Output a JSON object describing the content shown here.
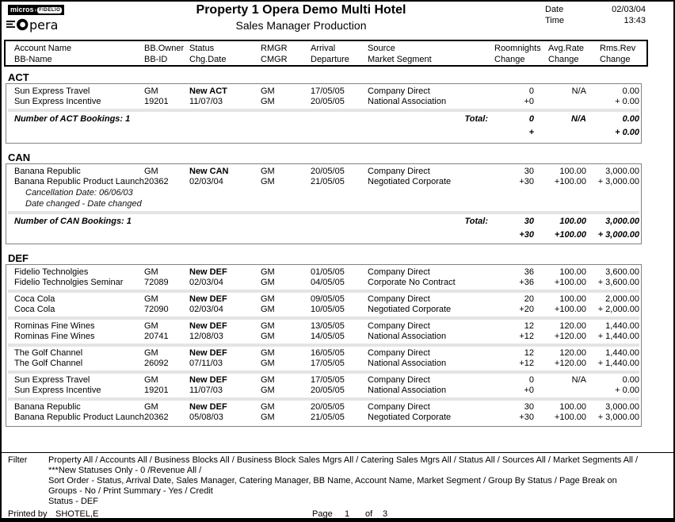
{
  "page": {
    "title": "Property 1 Opera Demo Multi Hotel",
    "subtitle": "Sales Manager Production",
    "date_label": "Date",
    "date_value": "02/03/04",
    "time_label": "Time",
    "time_value": "13:43"
  },
  "logo": {
    "micros_text": "micros",
    "arrow": "›",
    "fidelio_text": "FIDELIO",
    "opera_text": "pera"
  },
  "columns": {
    "line1": [
      "Account Name",
      "BB.Owner",
      "Status",
      "RMGR",
      "Arrival",
      "Source",
      "Roomnights",
      "Avg.Rate",
      "Rms.Rev"
    ],
    "line2": [
      "BB-Name",
      "BB-ID",
      "Chg.Date",
      "CMGR",
      "Departure",
      "Market Segment",
      "Change",
      "Change",
      "Change"
    ]
  },
  "sections": [
    {
      "code": "ACT",
      "bookings": [
        {
          "account": "Sun Express Travel",
          "owner": "GM",
          "status": "New ACT",
          "rmgr": "GM",
          "arrival": "17/05/05",
          "source": "Company Direct",
          "nights": "0",
          "rate": "N/A",
          "rev": "0.00",
          "bb_name": "Sun Express Incentive",
          "bb_id": "19201",
          "chg_date": "11/07/03",
          "cmgr": "GM",
          "departure": "20/05/05",
          "market_segment": "National Association",
          "nights_chg": "+0",
          "rate_chg": "",
          "rev_chg": "+ 0.00",
          "notes": []
        }
      ],
      "summary": {
        "count_label": "Number of ACT Bookings: 1",
        "total_label": "Total:",
        "nights": "0",
        "rate": "N/A",
        "rev": "0.00",
        "nights_chg": "+",
        "rate_chg": "",
        "rev_chg": "+ 0.00"
      }
    },
    {
      "code": "CAN",
      "bookings": [
        {
          "account": "Banana Republic",
          "owner": "GM",
          "status": "New CAN",
          "rmgr": "GM",
          "arrival": "20/05/05",
          "source": "Company Direct",
          "nights": "30",
          "rate": "100.00",
          "rev": "3,000.00",
          "bb_name": "Banana Republic Product Launch",
          "bb_id": "20362",
          "chg_date": "02/03/04",
          "cmgr": "GM",
          "departure": "21/05/05",
          "market_segment": "Negotiated Corporate",
          "nights_chg": "+30",
          "rate_chg": "+100.00",
          "rev_chg": "+ 3,000.00",
          "notes": [
            "Cancellation Date: 06/06/03",
            "Date changed - Date changed"
          ]
        }
      ],
      "summary": {
        "count_label": "Number of CAN Bookings: 1",
        "total_label": "Total:",
        "nights": "30",
        "rate": "100.00",
        "rev": "3,000.00",
        "nights_chg": "+30",
        "rate_chg": "+100.00",
        "rev_chg": "+ 3,000.00"
      }
    },
    {
      "code": "DEF",
      "bookings": [
        {
          "account": "Fidelio Technolgies",
          "owner": "GM",
          "status": "New DEF",
          "rmgr": "GM",
          "arrival": "01/05/05",
          "source": "Company Direct",
          "nights": "36",
          "rate": "100.00",
          "rev": "3,600.00",
          "bb_name": "Fidelio Technolgies Seminar",
          "bb_id": "72089",
          "chg_date": "02/03/04",
          "cmgr": "GM",
          "departure": "04/05/05",
          "market_segment": "Corporate No Contract",
          "nights_chg": "+36",
          "rate_chg": "+100.00",
          "rev_chg": "+ 3,600.00",
          "notes": []
        },
        {
          "account": "Coca Cola",
          "owner": "GM",
          "status": "New DEF",
          "rmgr": "GM",
          "arrival": "09/05/05",
          "source": "Company Direct",
          "nights": "20",
          "rate": "100.00",
          "rev": "2,000.00",
          "bb_name": "Coca Cola",
          "bb_id": "72090",
          "chg_date": "02/03/04",
          "cmgr": "GM",
          "departure": "10/05/05",
          "market_segment": "Negotiated Corporate",
          "nights_chg": "+20",
          "rate_chg": "+100.00",
          "rev_chg": "+ 2,000.00",
          "notes": []
        },
        {
          "account": "Rominas Fine Wines",
          "owner": "GM",
          "status": "New DEF",
          "rmgr": "GM",
          "arrival": "13/05/05",
          "source": "Company Direct",
          "nights": "12",
          "rate": "120.00",
          "rev": "1,440.00",
          "bb_name": "Rominas Fine Wines",
          "bb_id": "20741",
          "chg_date": "12/08/03",
          "cmgr": "GM",
          "departure": "14/05/05",
          "market_segment": "National Association",
          "nights_chg": "+12",
          "rate_chg": "+120.00",
          "rev_chg": "+ 1,440.00",
          "notes": []
        },
        {
          "account": "The Golf Channel",
          "owner": "GM",
          "status": "New DEF",
          "rmgr": "GM",
          "arrival": "16/05/05",
          "source": "Company Direct",
          "nights": "12",
          "rate": "120.00",
          "rev": "1,440.00",
          "bb_name": "The Golf Channel",
          "bb_id": "26092",
          "chg_date": "07/11/03",
          "cmgr": "GM",
          "departure": "17/05/05",
          "market_segment": "National Association",
          "nights_chg": "+12",
          "rate_chg": "+120.00",
          "rev_chg": "+ 1,440.00",
          "notes": []
        },
        {
          "account": "Sun Express Travel",
          "owner": "GM",
          "status": "New DEF",
          "rmgr": "GM",
          "arrival": "17/05/05",
          "source": "Company Direct",
          "nights": "0",
          "rate": "N/A",
          "rev": "0.00",
          "bb_name": "Sun Express Incentive",
          "bb_id": "19201",
          "chg_date": "11/07/03",
          "cmgr": "GM",
          "departure": "20/05/05",
          "market_segment": "National Association",
          "nights_chg": "+0",
          "rate_chg": "",
          "rev_chg": "+ 0.00",
          "notes": []
        },
        {
          "account": "Banana Republic",
          "owner": "GM",
          "status": "New DEF",
          "rmgr": "GM",
          "arrival": "20/05/05",
          "source": "Company Direct",
          "nights": "30",
          "rate": "100.00",
          "rev": "3,000.00",
          "bb_name": "Banana Republic Product Launch",
          "bb_id": "20362",
          "chg_date": "05/08/03",
          "cmgr": "GM",
          "departure": "21/05/05",
          "market_segment": "Negotiated Corporate",
          "nights_chg": "+30",
          "rate_chg": "+100.00",
          "rev_chg": "+ 3,000.00",
          "notes": []
        }
      ],
      "summary": null
    }
  ],
  "footer": {
    "filter_label": "Filter",
    "filter_lines": [
      "Property All / Accounts All / Business Blocks All / Business Block Sales Mgrs All / Catering Sales Mgrs All / Status All / Sources All /  Market Segments All / ***New Statuses Only - 0 /Revenue All /",
      "Sort Order - Status, Arrival Date, Sales Manager, Catering Manager, BB Name, Account Name, Market Segment / Group By Status /  Page Break on Groups - No / Print Summary - Yes / Credit",
      "Status - DEF"
    ],
    "printed_by_label": "Printed by",
    "printed_by_value": "SHOTEL,E",
    "page_label": "Page",
    "page_number": "1",
    "of_label": "of",
    "page_total": "3"
  },
  "colors": {
    "separator_band": "#e4e4e4",
    "border": "#000000"
  }
}
